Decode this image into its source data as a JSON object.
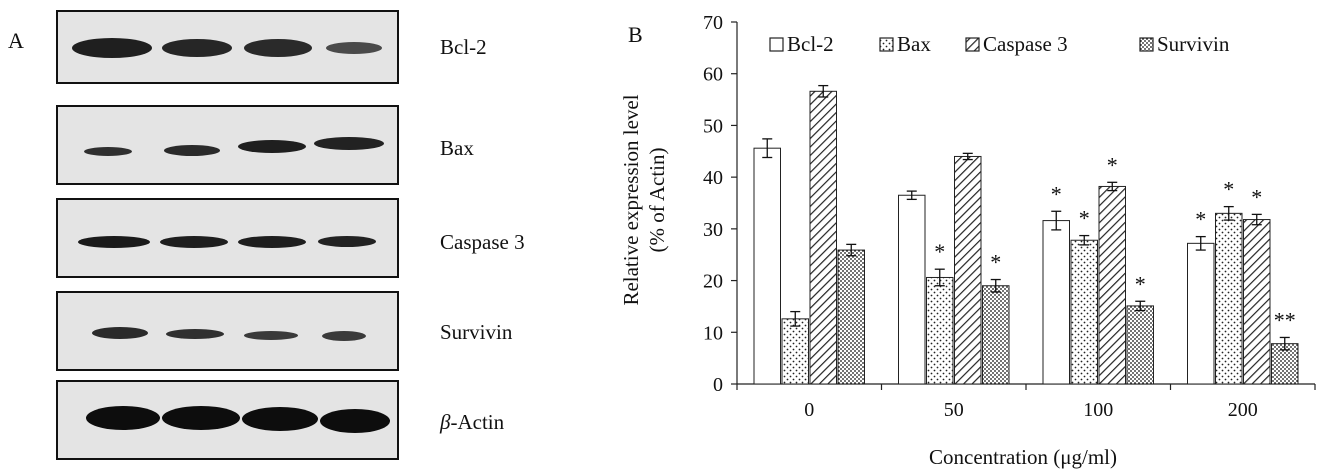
{
  "panel_a": {
    "label": "A",
    "blots": [
      {
        "label": "Bcl-2",
        "band_intensity": [
          1.0,
          0.95,
          0.9,
          0.55
        ]
      },
      {
        "label": "Bax",
        "band_intensity": [
          0.6,
          0.7,
          0.85,
          0.9
        ]
      },
      {
        "label": "Caspase 3",
        "band_intensity": [
          0.95,
          0.9,
          0.88,
          0.8
        ]
      },
      {
        "label": "Survivin",
        "band_intensity": [
          0.85,
          0.75,
          0.65,
          0.6
        ]
      },
      {
        "label_prefix": "β",
        "label_suffix": "-Actin",
        "band_intensity": [
          1.0,
          1.0,
          1.0,
          1.0
        ]
      }
    ]
  },
  "chart_data": {
    "panel_label": "B",
    "type": "bar",
    "categories": [
      "0",
      "50",
      "100",
      "200"
    ],
    "series": [
      {
        "name": "Bcl-2",
        "values": [
          45.6,
          36.5,
          31.6,
          27.2
        ],
        "errors": [
          1.8,
          0.8,
          1.8,
          1.3
        ],
        "significance": [
          "",
          "",
          "*",
          "*"
        ],
        "pattern": "open"
      },
      {
        "name": "Bax",
        "values": [
          12.6,
          20.6,
          27.8,
          33.0
        ],
        "errors": [
          1.4,
          1.6,
          0.9,
          1.3
        ],
        "significance": [
          "",
          "*",
          "*",
          "*"
        ],
        "pattern": "dots"
      },
      {
        "name": "Caspase 3",
        "values": [
          56.6,
          44.0,
          38.2,
          31.8
        ],
        "errors": [
          1.1,
          0.6,
          0.8,
          1.0
        ],
        "significance": [
          "",
          "",
          "*",
          "*"
        ],
        "pattern": "diagonal"
      },
      {
        "name": "Survivin",
        "values": [
          25.9,
          19.0,
          15.1,
          7.8
        ],
        "errors": [
          1.1,
          1.2,
          0.9,
          1.2
        ],
        "significance": [
          "",
          "*",
          "*",
          "**"
        ],
        "pattern": "dense-dots"
      }
    ],
    "ylabel_line1": "Relative expression level",
    "ylabel_line2": "(% of Actin)",
    "xlabel": "Concentration (μg/ml)",
    "ylim": [
      0,
      70
    ],
    "yticks": [
      "0",
      "10",
      "20",
      "30",
      "40",
      "50",
      "60",
      "70"
    ],
    "grid": false,
    "legend_position": "top"
  }
}
